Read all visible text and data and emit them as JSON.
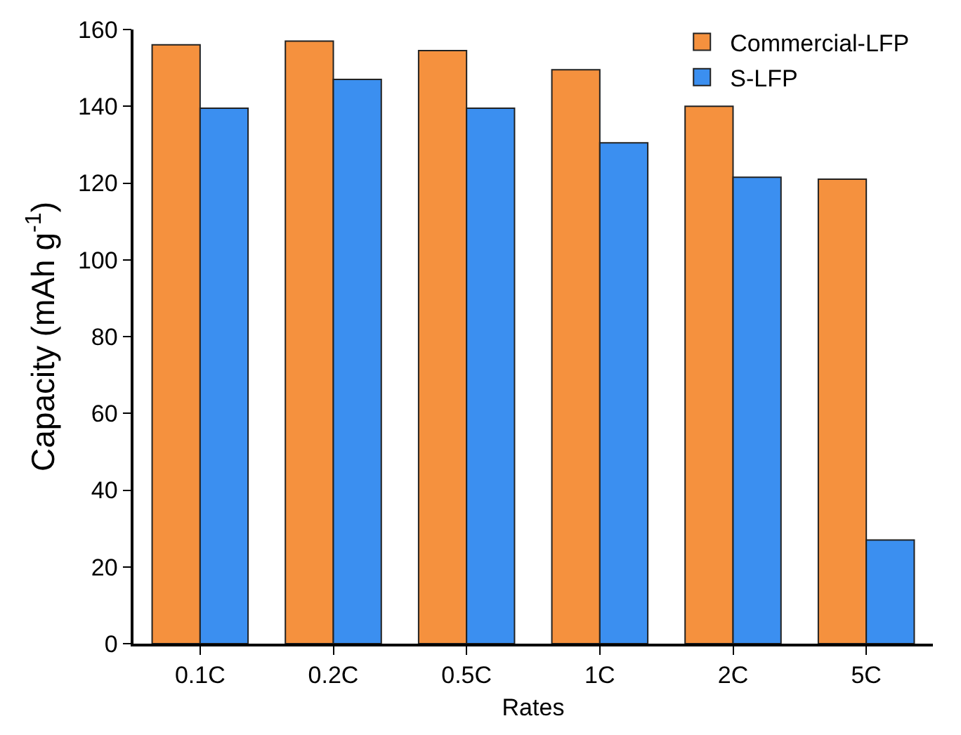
{
  "chart_data": {
    "type": "bar",
    "xlabel": "Rates",
    "ylabel": "Capacity (mAh g$^{-1}$)",
    "categories": [
      "0.1C",
      "0.2C",
      "0.5C",
      "1C",
      "2C",
      "5C"
    ],
    "series": [
      {
        "name": "Commercial-LFP",
        "color": "#f5913e",
        "values": [
          156,
          157,
          154.5,
          149.5,
          140,
          121
        ]
      },
      {
        "name": "S-LFP",
        "color": "#3b8ff0",
        "values": [
          139.5,
          147,
          139.5,
          130.5,
          121.5,
          27
        ]
      }
    ],
    "ylim": [
      0,
      160
    ],
    "yticks": [
      0,
      20,
      40,
      60,
      80,
      100,
      120,
      140,
      160
    ],
    "grid": false,
    "legend": "top right"
  }
}
